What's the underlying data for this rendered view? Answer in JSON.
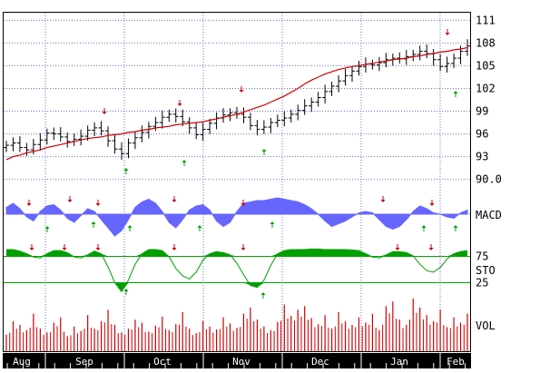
{
  "colors": {
    "background": "#ffffff",
    "frame": "#000000",
    "grid": "#6f6fd6",
    "price_bar": "#000000",
    "moving_average": "#cc0000",
    "macd_fill": "#6666ff",
    "stochastic_fill": "#00a000",
    "stochastic_line": "#00a000",
    "volume": "#cc0000",
    "sell_arrow": "#cc0000",
    "buy_arrow": "#00a000",
    "axis_strip": "#000000",
    "axis_strip_text": "#ffffff"
  },
  "chart_data": [
    {
      "panel": "price",
      "type": "ohlc",
      "y_ticks": [
        "111",
        "108",
        "105",
        "102",
        "99",
        "96",
        "93",
        "90.0"
      ],
      "ylim": [
        89.0,
        112.0
      ],
      "grid": true,
      "close": [
        94.5,
        94.8,
        94.2,
        93.9,
        94.6,
        95.2,
        96.1,
        96.0,
        95.6,
        95.0,
        95.3,
        95.7,
        96.5,
        96.8,
        96.4,
        95.1,
        94.0,
        93.4,
        94.8,
        95.5,
        96.2,
        97.0,
        97.5,
        98.2,
        98.6,
        98.3,
        97.6,
        96.8,
        95.9,
        96.6,
        97.4,
        98.1,
        98.5,
        98.8,
        98.6,
        98.2,
        97.1,
        96.6,
        96.9,
        97.5,
        97.8,
        98.1,
        98.6,
        99.1,
        99.7,
        100.2,
        100.8,
        101.6,
        102.3,
        103.0,
        103.7,
        104.3,
        104.9,
        105.2,
        105.1,
        105.4,
        105.8,
        106.0,
        105.9,
        106.2,
        106.5,
        106.9,
        106.6,
        105.8,
        104.9,
        105.3,
        106.0,
        106.9,
        107.6
      ],
      "moving_average": [
        92.6,
        93.0,
        93.2,
        93.5,
        93.7,
        93.9,
        94.2,
        94.4,
        94.6,
        94.8,
        95.0,
        95.2,
        95.4,
        95.5,
        95.6,
        95.8,
        95.9,
        96.0,
        96.2,
        96.3,
        96.5,
        96.6,
        96.8,
        96.9,
        97.0,
        97.2,
        97.3,
        97.4,
        97.5,
        97.6,
        97.8,
        98.0,
        98.2,
        98.4,
        98.6,
        98.9,
        99.2,
        99.5,
        99.8,
        100.2,
        100.6,
        101.0,
        101.5,
        102.0,
        102.6,
        103.1,
        103.5,
        103.9,
        104.2,
        104.5,
        104.7,
        104.9,
        105.0,
        105.2,
        105.3,
        105.5,
        105.6,
        105.8,
        105.9,
        106.0,
        106.2,
        106.3,
        106.5,
        106.6,
        106.8,
        106.9,
        107.1,
        107.2,
        107.4
      ]
    },
    {
      "panel": "macd",
      "type": "area",
      "label": "MACD",
      "values": [
        0.5,
        0.8,
        0.4,
        -0.2,
        -0.5,
        0.2,
        0.6,
        0.7,
        0.3,
        -0.3,
        -0.6,
        -0.1,
        0.4,
        0.2,
        -0.4,
        -1.0,
        -1.6,
        -1.2,
        -0.4,
        0.5,
        0.9,
        1.1,
        0.8,
        0.2,
        -0.6,
        -1.0,
        -0.4,
        0.3,
        0.6,
        0.7,
        0.3,
        -0.5,
        -0.9,
        -0.6,
        0.2,
        0.8,
        0.9,
        1.0,
        1.0,
        1.1,
        1.2,
        1.1,
        1.0,
        0.9,
        0.7,
        0.4,
        0.0,
        -0.5,
        -0.9,
        -0.7,
        -0.5,
        -0.2,
        0.1,
        0.2,
        0.1,
        -0.4,
        -0.9,
        -1.1,
        -0.9,
        -0.4,
        0.2,
        0.6,
        0.4,
        0.1,
        0.0,
        -0.2,
        -0.3,
        0.1,
        0.3
      ]
    },
    {
      "panel": "stochastic",
      "type": "area",
      "label": "STO",
      "levels": [
        "75",
        "25"
      ],
      "ylim": [
        0,
        100
      ],
      "values": [
        88,
        88,
        85,
        80,
        74,
        72,
        80,
        86,
        86,
        82,
        74,
        72,
        78,
        85,
        80,
        55,
        25,
        8,
        30,
        60,
        80,
        88,
        88,
        86,
        74,
        52,
        38,
        32,
        45,
        68,
        80,
        84,
        82,
        78,
        62,
        40,
        20,
        16,
        30,
        58,
        80,
        86,
        88,
        88,
        88,
        89,
        89,
        88,
        88,
        88,
        88,
        87,
        86,
        80,
        74,
        72,
        78,
        84,
        84,
        82,
        76,
        60,
        48,
        45,
        54,
        70,
        80,
        84,
        86
      ]
    },
    {
      "panel": "volume",
      "type": "bar",
      "label": "VOL",
      "values": [
        22,
        40,
        35,
        28,
        50,
        30,
        25,
        38,
        45,
        20,
        33,
        27,
        48,
        30,
        40,
        55,
        35,
        25,
        30,
        42,
        38,
        26,
        34,
        46,
        28,
        36,
        52,
        30,
        24,
        40,
        33,
        29,
        45,
        37,
        31,
        50,
        58,
        42,
        33,
        28,
        39,
        62,
        47,
        55,
        60,
        44,
        36,
        48,
        30,
        52,
        40,
        35,
        45,
        38,
        50,
        28,
        60,
        66,
        42,
        35,
        70,
        58,
        48,
        40,
        55,
        32,
        45,
        38,
        50
      ]
    }
  ],
  "x_axis": {
    "months": [
      {
        "label": "Aug"
      },
      {
        "label": "Sep"
      },
      {
        "label": "Oct"
      },
      {
        "label": "Nov"
      },
      {
        "label": "Dec"
      },
      {
        "label": "Jan"
      },
      {
        "label": "Feb"
      }
    ]
  },
  "signals": {
    "sell_arrow_icon": "red-down-arrow",
    "buy_arrow_icon": "green-up-arrow"
  }
}
